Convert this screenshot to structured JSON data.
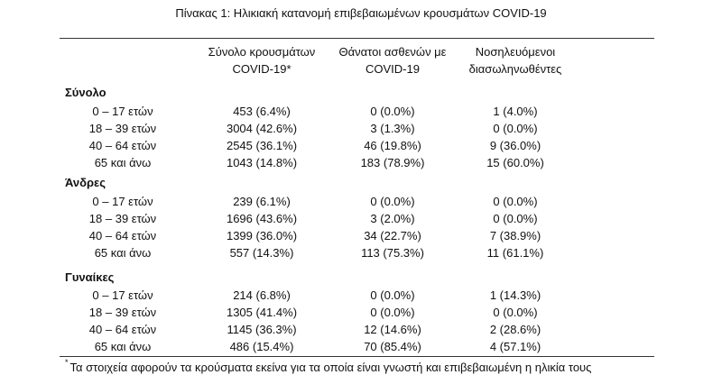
{
  "title": "Πίνακας 1: Ηλικιακή κατανομή επιβεβαιωμένων κρουσμάτων COVID-19",
  "columns": {
    "cases_line1": "Σύνολο κρουσμάτων",
    "cases_line2": "COVID-19*",
    "deaths_line1": "Θάνατοι ασθενών με",
    "deaths_line2": "COVID-19",
    "intubated_line1": "Νοσηλευόμενοι",
    "intubated_line2": "διασωληνωθέντες"
  },
  "sections": [
    {
      "title": "Σύνολο",
      "rows": [
        {
          "age": "0 – 17 ετών",
          "cases": "453 (6.4%)",
          "deaths": "0 (0.0%)",
          "intubated": "1 (4.0%)"
        },
        {
          "age": "18 – 39 ετών",
          "cases": "3004 (42.6%)",
          "deaths": "3 (1.3%)",
          "intubated": "0 (0.0%)"
        },
        {
          "age": "40 – 64 ετών",
          "cases": "2545 (36.1%)",
          "deaths": "46 (19.8%)",
          "intubated": "9 (36.0%)"
        },
        {
          "age": "65 και άνω",
          "cases": "1043 (14.8%)",
          "deaths": "183 (78.9%)",
          "intubated": "15 (60.0%)"
        }
      ]
    },
    {
      "title": "Άνδρες",
      "rows": [
        {
          "age": "0 – 17 ετών",
          "cases": "239 (6.1%)",
          "deaths": "0 (0.0%)",
          "intubated": "0 (0.0%)"
        },
        {
          "age": "18 – 39 ετών",
          "cases": "1696 (43.6%)",
          "deaths": "3 (2.0%)",
          "intubated": "0 (0.0%)"
        },
        {
          "age": "40 – 64 ετών",
          "cases": "1399 (36.0%)",
          "deaths": "34 (22.7%)",
          "intubated": "7 (38.9%)"
        },
        {
          "age": "65 και άνω",
          "cases": "557 (14.3%)",
          "deaths": "113 (75.3%)",
          "intubated": "11 (61.1%)"
        }
      ]
    },
    {
      "title": "Γυναίκες",
      "rows": [
        {
          "age": "0 – 17 ετών",
          "cases": "214 (6.8%)",
          "deaths": "0 (0.0%)",
          "intubated": "1 (14.3%)"
        },
        {
          "age": "18 – 39 ετών",
          "cases": "1305 (41.4%)",
          "deaths": "0 (0.0%)",
          "intubated": "0 (0.0%)"
        },
        {
          "age": "40 – 64 ετών",
          "cases": "1145 (36.3%)",
          "deaths": "12 (14.6%)",
          "intubated": "2 (28.6%)"
        },
        {
          "age": "65 και άνω",
          "cases": "486 (15.4%)",
          "deaths": "70 (85.4%)",
          "intubated": "4 (57.1%)"
        }
      ]
    }
  ],
  "footnote": {
    "marker": "*",
    "text": "Τα στοιχεία αφορούν τα κρούσματα εκείνα για τα οποία είναι γνωστή και επιβεβαιωμένη η ηλικία τους"
  }
}
